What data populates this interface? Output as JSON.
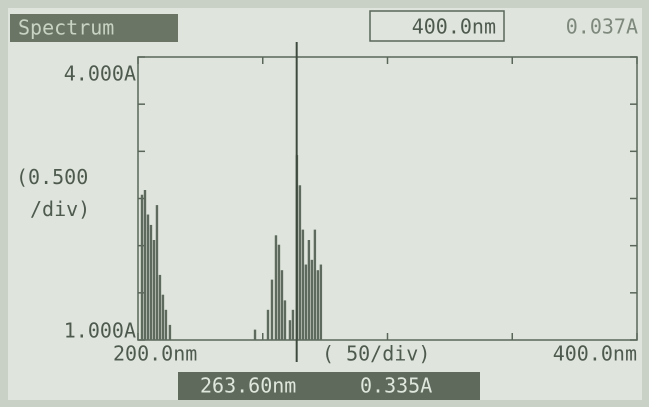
{
  "chart_data": {
    "type": "bar",
    "title": "Spectrum",
    "wavelength_readout": "400.0nm",
    "absorbance_readout": "0.037A",
    "y_label": "(0.500\n/div)",
    "x_label": "( 50/div)",
    "cursor_x": 263.6,
    "cursor_wavelength": "263.60nm",
    "cursor_absorbance": "0.335A",
    "x": [
      201.6,
      202.8,
      204.0,
      205.2,
      206.4,
      207.6,
      208.8,
      210.0,
      211.2,
      212.8,
      246.9,
      252.1,
      253.7,
      255.3,
      256.5,
      257.7,
      258.9,
      260.9,
      262.1,
      263.7,
      264.9,
      266.1,
      267.3,
      268.5,
      269.7,
      270.9,
      272.1,
      273.3
    ],
    "values": [
      2.54,
      2.59,
      2.33,
      2.22,
      2.06,
      2.43,
      1.69,
      1.48,
      1.32,
      1.16,
      1.11,
      1.32,
      1.64,
      2.11,
      2.01,
      1.74,
      1.42,
      1.21,
      1.32,
      2.96,
      2.64,
      2.17,
      1.8,
      2.06,
      1.85,
      2.17,
      1.74,
      1.8
    ],
    "color": "#5d6a5d",
    "xlim": [
      200,
      400
    ],
    "ylim": [
      1,
      4
    ],
    "xticks": [
      {
        "value": 200,
        "label": "200.0nm"
      },
      250,
      300,
      350,
      {
        "value": 400,
        "label": "400.0nm"
      }
    ],
    "yticks": [
      {
        "value": 1,
        "label": "1.000A"
      },
      1.5,
      2,
      2.5,
      3,
      3.5,
      {
        "value": 4,
        "label": "4.000A"
      }
    ]
  }
}
